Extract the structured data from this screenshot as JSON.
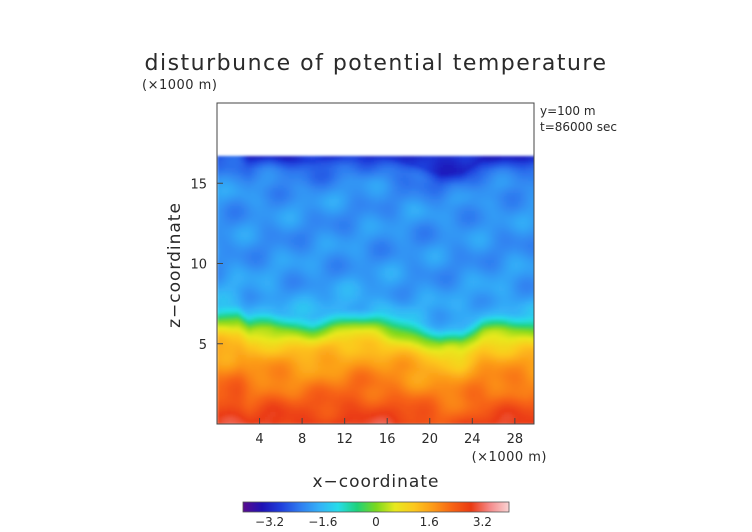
{
  "chart_data": {
    "type": "heatmap",
    "title": "disturbunce of potential temperature",
    "xlabel": "x−coordinate",
    "ylabel": "z−coordinate",
    "x_unit": "(×1000 m)",
    "y_unit": "(×1000 m)",
    "annotations": [
      "y=100  m",
      "t=86000 sec"
    ],
    "xlim": [
      0,
      29.8
    ],
    "ylim": [
      0,
      20
    ],
    "x_ticks": [
      4,
      8,
      12,
      16,
      20,
      24,
      28
    ],
    "y_ticks": [
      5,
      10,
      15
    ],
    "grid": false,
    "data_top_z": 16.7,
    "colorbar": {
      "range": [
        -4,
        4
      ],
      "ticks": [
        -3.2,
        -1.6,
        0,
        1.6,
        3.2
      ],
      "tick_labels": [
        "−3.2",
        "−1.6",
        "0",
        "1.6",
        "3.2"
      ],
      "colors": [
        "#5a0c8e",
        "#1f12b4",
        "#1f3fdc",
        "#2f7cf0",
        "#34b0f8",
        "#27dcea",
        "#1ed27a",
        "#7ad81e",
        "#e8e81e",
        "#fcc81e",
        "#fc9a18",
        "#f76414",
        "#ea3a12",
        "#f58a8a",
        "#fad4d4"
      ]
    },
    "profile": {
      "z": [
        0,
        1,
        2,
        3,
        4,
        5,
        6,
        6.5,
        7,
        8,
        9,
        10,
        12,
        14,
        15,
        16,
        16.4,
        16.7
      ],
      "value": [
        2.9,
        2.6,
        2.2,
        1.9,
        1.6,
        1.1,
        0.1,
        -0.9,
        -1.6,
        -1.85,
        -1.95,
        -2.0,
        -2.05,
        -2.0,
        -2.1,
        -2.4,
        -2.7,
        -3.1
      ]
    },
    "inversion_height_z": [
      [
        0,
        6.6
      ],
      [
        2,
        6.7
      ],
      [
        3,
        6.1
      ],
      [
        5,
        6.2
      ],
      [
        7,
        6.0
      ],
      [
        9,
        5.9
      ],
      [
        11,
        6.2
      ],
      [
        13,
        6.4
      ],
      [
        15,
        6.3
      ],
      [
        17,
        6.0
      ],
      [
        19,
        5.6
      ],
      [
        21,
        5.1
      ],
      [
        23,
        5.2
      ],
      [
        25,
        6.0
      ],
      [
        27,
        6.1
      ],
      [
        29.8,
        6.0
      ]
    ]
  }
}
